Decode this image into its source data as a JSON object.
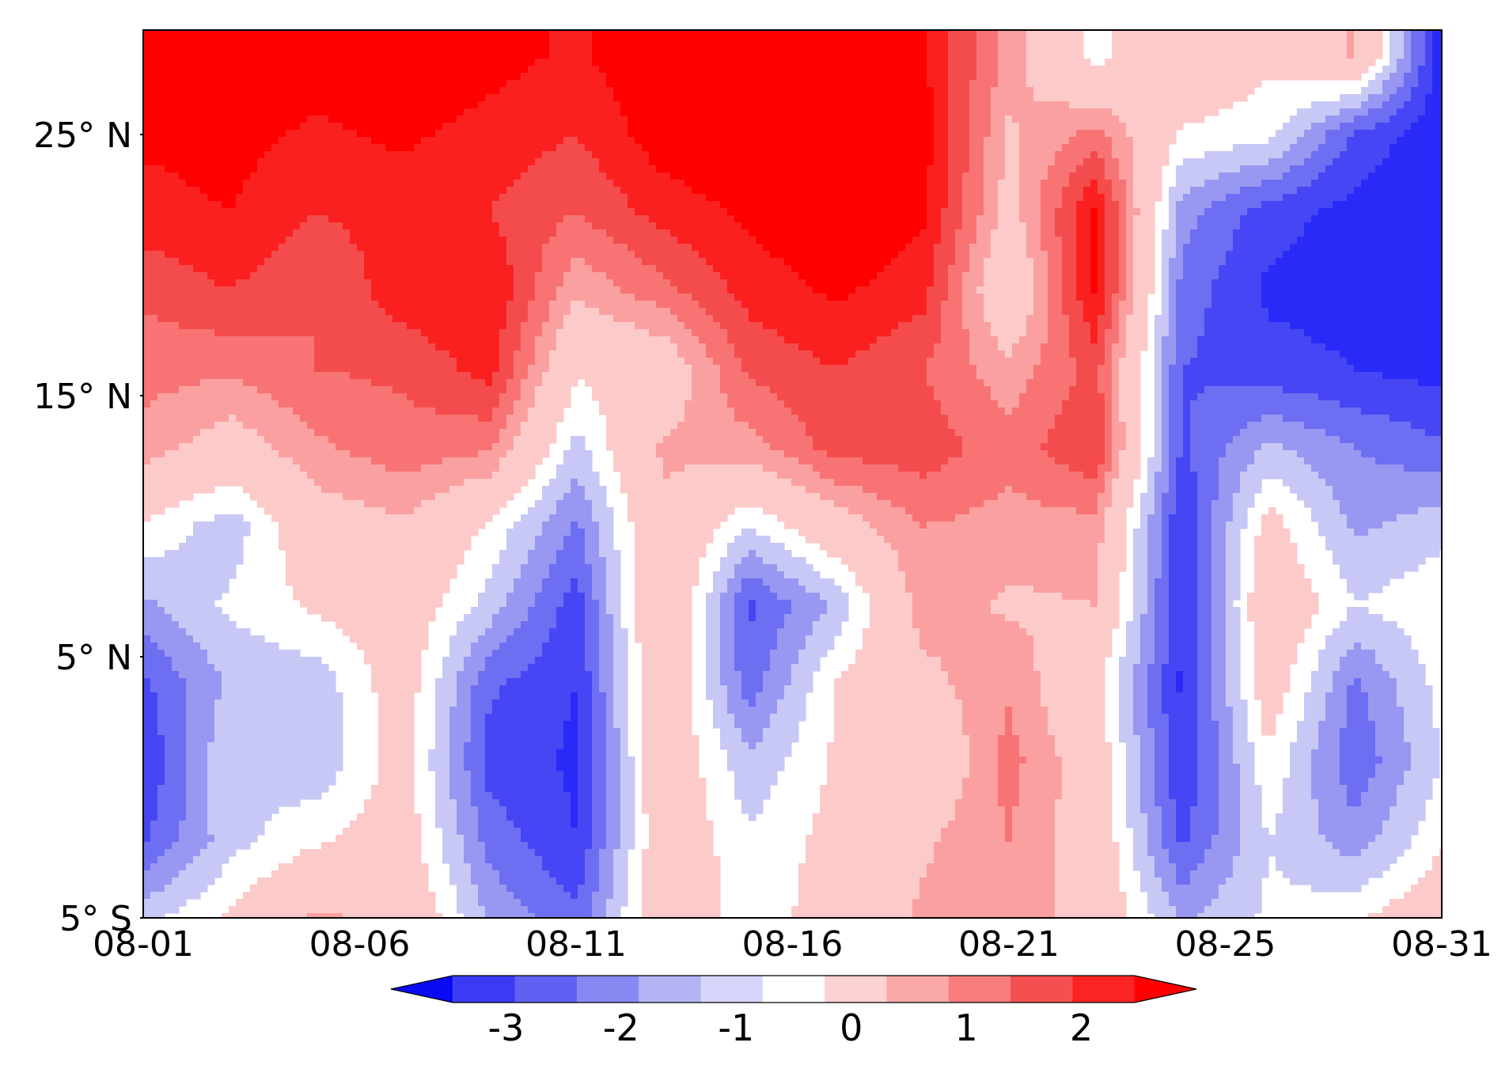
{
  "chart_data": {
    "type": "heatmap",
    "title": "",
    "xlabel": "",
    "ylabel": "",
    "x_tick_labels": [
      "08-01",
      "08-06",
      "08-11",
      "08-16",
      "08-21",
      "08-25",
      "08-31"
    ],
    "y_tick_labels": [
      "5° S",
      "5° N",
      "15° N",
      "25° N"
    ],
    "x_days": [
      1,
      3,
      5,
      7,
      9,
      11,
      13,
      15,
      17,
      19,
      21,
      23,
      25,
      27,
      29,
      31
    ],
    "y_lats": [
      -5,
      -2,
      1,
      4,
      7,
      10,
      13,
      16,
      19,
      22,
      25,
      28
    ],
    "z": [
      [
        -1.2,
        -0.4,
        0.6,
        0.3,
        -1.6,
        -2.4,
        0.2,
        -0.8,
        -0.2,
        0.6,
        0.9,
        0.2,
        -1.6,
        -0.9,
        -0.6,
        0.1
      ],
      [
        -2.6,
        -1.2,
        -0.6,
        -0.1,
        -2.2,
        -3.0,
        0.1,
        -0.9,
        -0.3,
        0.4,
        1.0,
        0.1,
        -2.6,
        -1.0,
        -1.8,
        -0.6
      ],
      [
        -3.0,
        -1.0,
        -1.4,
        -0.2,
        -2.7,
        -3.1,
        0.2,
        -1.4,
        -0.4,
        -0.3,
        1.2,
        0.0,
        -3.0,
        -0.6,
        -2.4,
        -1.0
      ],
      [
        -2.6,
        -1.4,
        -1.3,
        -0.1,
        -2.4,
        -3.0,
        0.3,
        -2.3,
        -0.5,
        0.3,
        0.9,
        -0.3,
        -3.1,
        0.0,
        -2.1,
        -0.8
      ],
      [
        -1.6,
        -0.9,
        -0.4,
        0.0,
        -1.2,
        -2.8,
        0.6,
        -2.6,
        -1.4,
        0.8,
        0.4,
        0.5,
        -3.0,
        0.2,
        -1.0,
        -0.6
      ],
      [
        -0.6,
        -1.3,
        0.1,
        0.4,
        -0.6,
        -2.1,
        0.4,
        -1.0,
        0.1,
        1.0,
        0.8,
        0.8,
        -3.0,
        -0.2,
        -1.6,
        -1.2
      ],
      [
        0.8,
        0.1,
        0.9,
        1.3,
        1.1,
        -1.2,
        0.6,
        0.8,
        1.7,
        1.8,
        1.2,
        2.0,
        -2.6,
        -1.4,
        -2.0,
        -2.4
      ],
      [
        1.2,
        1.1,
        1.5,
        1.6,
        2.2,
        -0.4,
        -0.1,
        1.6,
        2.0,
        1.5,
        0.7,
        1.7,
        -2.5,
        -2.8,
        -3.0,
        -3.2
      ],
      [
        1.6,
        2.0,
        1.5,
        2.3,
        2.5,
        0.6,
        1.3,
        2.2,
        2.6,
        2.2,
        -0.4,
        2.6,
        -2.2,
        -3.1,
        -3.2,
        -3.3
      ],
      [
        2.3,
        2.5,
        2.0,
        2.2,
        2.0,
        1.5,
        2.2,
        2.6,
        3.0,
        2.6,
        0.2,
        2.6,
        -1.8,
        -2.8,
        -3.2,
        -3.4
      ],
      [
        2.6,
        2.7,
        2.4,
        2.6,
        2.3,
        2.0,
        2.8,
        3.0,
        3.1,
        2.8,
        0.4,
        1.2,
        -0.6,
        -0.8,
        -2.6,
        -3.4
      ],
      [
        2.7,
        3.0,
        2.8,
        3.0,
        2.7,
        2.4,
        3.0,
        3.0,
        3.1,
        2.6,
        0.8,
        -0.7,
        0.3,
        -0.4,
        0.6,
        -3.3
      ]
    ],
    "levels": [
      -3.5,
      -3,
      -2.5,
      -2,
      -1.5,
      -1,
      -0.5,
      0.5,
      1,
      1.5,
      2,
      2.5
    ],
    "level_colors": [
      "#0a0af5",
      "#2a2af8",
      "#4646f4",
      "#6e6ef2",
      "#9898f2",
      "#c8c8f6",
      "#ffffff",
      "#fdcaca",
      "#fba0a0",
      "#f87474",
      "#f44c4c",
      "#fb2020",
      "#ff0000"
    ],
    "colorbar": {
      "tick_labels": [
        "-3",
        "-2",
        "-1",
        "0",
        "1",
        "2"
      ],
      "tick_values": [
        -3,
        -2,
        -1,
        0,
        1,
        2
      ],
      "extend": "both",
      "orientation": "horizontal",
      "bin_colors": [
        "#0a0af5",
        "#3b3bf6",
        "#6060f2",
        "#8888f2",
        "#b4b4f4",
        "#d6d6fa",
        "#ffffff",
        "#fdd2d2",
        "#fba8a8",
        "#f87c7c",
        "#f45050",
        "#fb2424",
        "#ff0000"
      ],
      "bin_edges": [
        -3.5,
        -3,
        -2.5,
        -2,
        -1.5,
        -1,
        -0.5,
        0.5,
        1,
        1.5,
        2,
        2.5
      ]
    },
    "xlim": [
      1,
      31
    ],
    "ylim": [
      -5,
      29
    ]
  }
}
